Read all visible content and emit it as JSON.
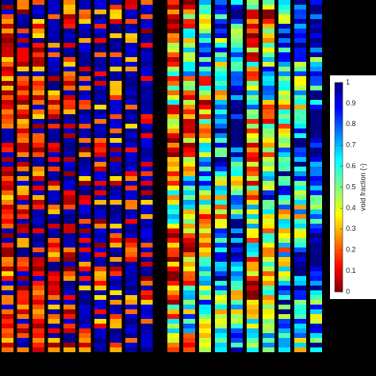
{
  "chart_data": {
    "type": "heatmap",
    "colorbar_label": "void fraction (-)",
    "zlim": [
      0,
      1
    ],
    "zticks": [
      0,
      0.1,
      0.2,
      0.3,
      0.4,
      0.5,
      0.6,
      0.7,
      0.8,
      0.9,
      1
    ]
  }
}
